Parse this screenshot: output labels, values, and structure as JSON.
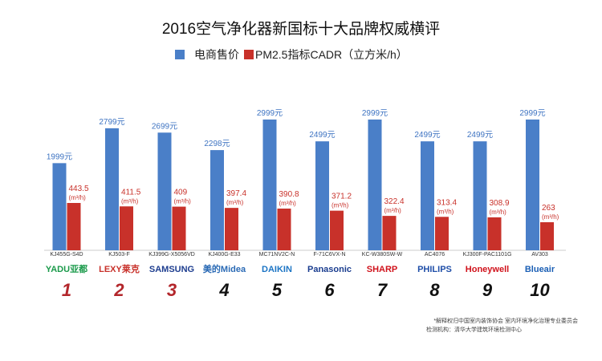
{
  "chart_data": {
    "type": "bar",
    "title": "2016空气净化器新国标十大品牌权威横评",
    "legend": [
      "电商售价",
      "PM2.5指标CADR（立方米/h）"
    ],
    "legend_placement": "top",
    "categories": [
      "KJ455G-S4D",
      "KJ503-F",
      "KJ399G-X5056VD",
      "KJ400G-E33",
      "MC71NV2C-N",
      "F-71C6VX-N",
      "KC-W380SW-W",
      "AC4076",
      "KJ300F-PAC1101G",
      "AV303"
    ],
    "brands": [
      "YADU亚都",
      "LEXY莱克",
      "SAMSUNG",
      "美的Midea",
      "DAIKIN",
      "Panasonic",
      "SHARP",
      "PHILIPS",
      "Honeywell",
      "Blueair"
    ],
    "ranks": [
      "1",
      "2",
      "3",
      "4",
      "5",
      "6",
      "7",
      "8",
      "9",
      "10"
    ],
    "series": [
      {
        "name": "电商售价",
        "values": [
          1999,
          2799,
          2699,
          2298,
          2999,
          2499,
          2999,
          2499,
          2499,
          2999
        ],
        "labels": [
          "1999元",
          "2799元",
          "2699元",
          "2298元",
          "2999元",
          "2499元",
          "2999元",
          "2499元",
          "2499元",
          "2999元"
        ]
      },
      {
        "name": "PM2.5指标CADR（立方米/h）",
        "values": [
          443.5,
          411.5,
          409,
          397.4,
          390.8,
          371.2,
          322.4,
          313.4,
          308.9,
          263
        ],
        "labels": [
          "443.5",
          "411.5",
          "409",
          "397.4",
          "390.8",
          "371.2",
          "322.4",
          "313.4",
          "308.9",
          "263"
        ],
        "unit": "(m³/h)"
      }
    ],
    "colors": {
      "price": "#4a7fc8",
      "cadr": "#c8312a",
      "rank_red": "#b3262b",
      "rank_dark": "#111111"
    }
  },
  "notes": {
    "line1": "*解释权归中国室内装饰协会 室内环境净化治理专业委员会",
    "line2": "检测机构：清华大学建筑环境检测中心"
  }
}
